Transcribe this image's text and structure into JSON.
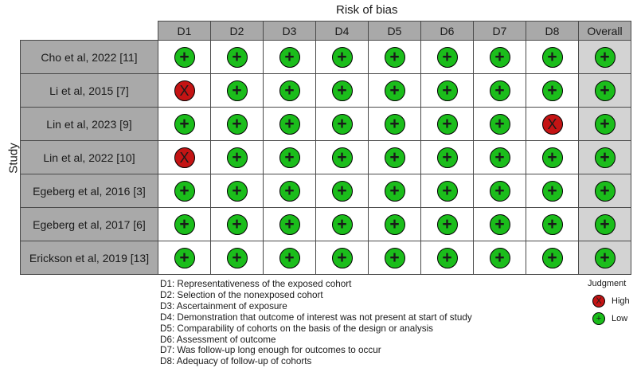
{
  "figure": {
    "header_title": "Risk of bias",
    "y_axis_label": "Study",
    "columns": [
      "D1",
      "D2",
      "D3",
      "D4",
      "D5",
      "D6",
      "D7",
      "D8",
      "Overall"
    ],
    "studies": [
      {
        "name": "Cho et al, 2022 [11]",
        "judgments": [
          "+",
          "+",
          "+",
          "+",
          "+",
          "+",
          "+",
          "+",
          "+"
        ]
      },
      {
        "name": "Li et al, 2015 [7]",
        "judgments": [
          "X",
          "+",
          "+",
          "+",
          "+",
          "+",
          "+",
          "+",
          "+"
        ]
      },
      {
        "name": "Lin et al, 2023 [9]",
        "judgments": [
          "+",
          "+",
          "+",
          "+",
          "+",
          "+",
          "+",
          "X",
          "+"
        ]
      },
      {
        "name": "Lin et al, 2022 [10]",
        "judgments": [
          "X",
          "+",
          "+",
          "+",
          "+",
          "+",
          "+",
          "+",
          "+"
        ]
      },
      {
        "name": "Egeberg et al, 2016 [3]",
        "judgments": [
          "+",
          "+",
          "+",
          "+",
          "+",
          "+",
          "+",
          "+",
          "+"
        ]
      },
      {
        "name": "Egeberg et al, 2017 [6]",
        "judgments": [
          "+",
          "+",
          "+",
          "+",
          "+",
          "+",
          "+",
          "+",
          "+"
        ]
      },
      {
        "name": "Erickson et al, 2019 [13]",
        "judgments": [
          "+",
          "+",
          "+",
          "+",
          "+",
          "+",
          "+",
          "+",
          "+"
        ]
      }
    ],
    "domain_legend": [
      "D1: Representativeness of the exposed cohort",
      "D2: Selection of the nonexposed cohort",
      "D3: Ascertainment of exposure",
      "D4: Demonstration that outcome of interest was not present at start of study",
      "D5: Comparability of cohorts on the basis of the design or analysis",
      "D6: Assessment of outcome",
      "D7: Was follow-up long enough for outcomes to occur",
      "D8: Adequacy of follow-up of cohorts"
    ],
    "judgment_legend": {
      "title": "Judgment",
      "items": [
        {
          "symbol": "X",
          "label": "High",
          "color": "#c41414"
        },
        {
          "symbol": "+",
          "label": "Low",
          "color": "#1bbd1b"
        }
      ]
    },
    "colors": {
      "low": "#1bbd1b",
      "high": "#c41414",
      "header_bg": "#a9a9a9",
      "overall_bg": "#d3d3d3"
    }
  }
}
